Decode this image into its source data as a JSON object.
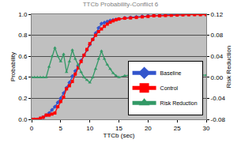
{
  "chart_data": {
    "type": "line",
    "title": "TTCb Probability-Conflict 6",
    "x_label": "TTCb (sec)",
    "y_label": "Probability",
    "y2_label": "Risk Reduction",
    "x": [
      0,
      0.5,
      1,
      1.5,
      2,
      2.5,
      3,
      3.5,
      4,
      4.5,
      5,
      5.5,
      6,
      6.5,
      7,
      7.5,
      8,
      8.5,
      9,
      9.5,
      10,
      10.5,
      11,
      11.5,
      12,
      12.5,
      13,
      13.5,
      14,
      14.5,
      15,
      16,
      17,
      18,
      19,
      20,
      21,
      22,
      23,
      24,
      25,
      26,
      27,
      28,
      29,
      30
    ],
    "series": [
      {
        "name": "Baseline",
        "color": "#3355cc",
        "marker": "diamond",
        "line_style": "solid",
        "values": [
          0,
          0,
          0,
          0.01,
          0.02,
          0.04,
          0.06,
          0.09,
          0.12,
          0.16,
          0.2,
          0.25,
          0.3,
          0.35,
          0.41,
          0.46,
          0.51,
          0.56,
          0.61,
          0.66,
          0.71,
          0.76,
          0.82,
          0.87,
          0.91,
          0.92,
          0.93,
          0.94,
          0.945,
          0.95,
          0.955,
          0.965,
          0.97,
          0.975,
          0.98,
          0.985,
          0.99,
          0.99,
          0.993,
          0.995,
          0.997,
          0.998,
          0.999,
          1,
          1,
          1
        ]
      },
      {
        "name": "Control",
        "color": "#ff0000",
        "marker": "square",
        "line_style": "solid",
        "values": [
          0,
          0,
          0,
          0.01,
          0.02,
          0.04,
          0.04,
          0.05,
          0.06,
          0.12,
          0.17,
          0.21,
          0.29,
          0.32,
          0.36,
          0.43,
          0.49,
          0.55,
          0.61,
          0.665,
          0.72,
          0.76,
          0.8,
          0.835,
          0.86,
          0.885,
          0.906,
          0.924,
          0.937,
          0.947,
          0.955,
          0.962,
          0.965,
          0.969,
          0.975,
          0.979,
          0.985,
          0.985,
          0.988,
          0.99,
          0.992,
          0.994,
          0.995,
          0.996,
          0.996,
          0.996
        ]
      },
      {
        "name": "Risk Reduction",
        "color": "#339966",
        "marker": "triangle-up",
        "line_style": "solid",
        "axis": "y2",
        "values": [
          0,
          0,
          0,
          0,
          0,
          0,
          0.02,
          0.04,
          0.056,
          0.04,
          0.03,
          0.044,
          0.01,
          0.03,
          0.052,
          0.035,
          0.024,
          0.01,
          0,
          -0.005,
          -0.01,
          0,
          0.016,
          0.035,
          0.05,
          0.035,
          0.024,
          0.016,
          0.008,
          0.003,
          0,
          0.003,
          0.005,
          0.006,
          0.005,
          0.006,
          0.005,
          0.005,
          0.005,
          0.005,
          0.005,
          0.004,
          0.004,
          0.004,
          0.004,
          0.004
        ]
      }
    ],
    "xlim": [
      0,
      30
    ],
    "xticks": [
      0,
      5,
      10,
      15,
      20,
      25,
      30
    ],
    "ylim": [
      0,
      1
    ],
    "yticks": [
      {
        "value": 0,
        "label": "0.0"
      },
      0.2,
      0.4,
      0.6,
      0.8,
      {
        "value": 1,
        "label": "1.0"
      }
    ],
    "y2lim": [
      -0.08,
      0.12
    ],
    "y2ticks": [
      -0.08,
      -0.04,
      {
        "value": 0,
        "label": "0.00"
      },
      0.04,
      0.08,
      0.12
    ],
    "grid": true,
    "legend": "lower right"
  }
}
